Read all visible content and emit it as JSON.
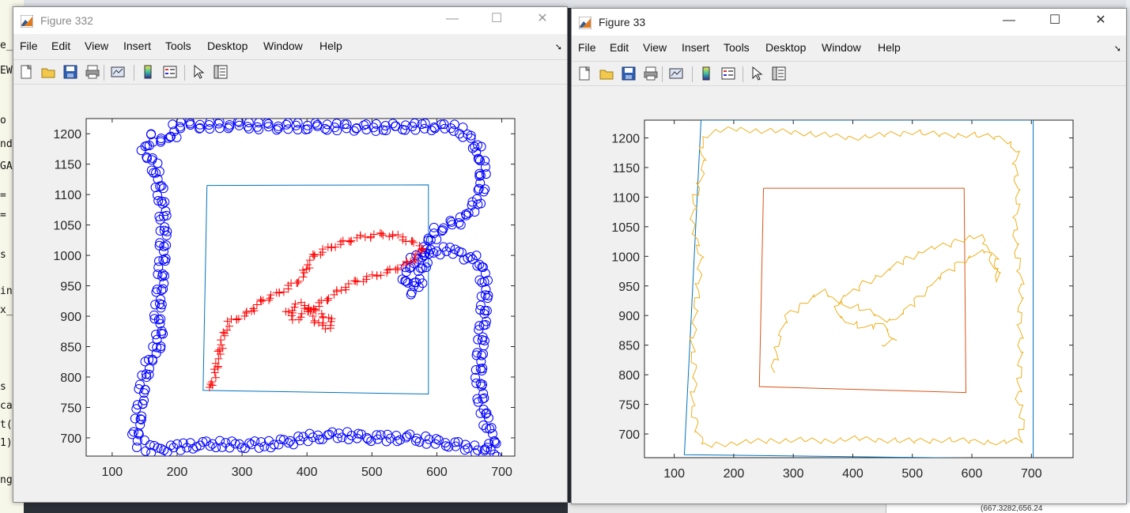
{
  "background": {
    "editor_lines": [
      {
        "text": "e_c",
        "top": 50
      },
      {
        "text": "EW",
        "top": 82
      },
      {
        "text": "o T",
        "top": 145
      },
      {
        "text": "nd",
        "top": 175
      },
      {
        "text": "GAT",
        "top": 203
      },
      {
        "text": "=",
        "top": 240
      },
      {
        "text": "=",
        "top": 265
      },
      {
        "text": "s",
        "top": 315
      },
      {
        "text": "in",
        "top": 361
      },
      {
        "text": "x_",
        "top": 385
      },
      {
        "text": "s",
        "top": 482
      },
      {
        "text": "ca",
        "top": 506
      },
      {
        "text": "t(",
        "top": 530
      },
      {
        "text": "1)",
        "top": 553
      },
      {
        "text": "ng",
        "top": 600
      }
    ],
    "status_text": "(667.3282,656.24"
  },
  "windows": [
    {
      "id": "fig332",
      "title": "Figure 332",
      "active": false,
      "menu": [
        "File",
        "Edit",
        "View",
        "Insert",
        "Tools",
        "Desktop",
        "Window",
        "Help"
      ]
    },
    {
      "id": "fig33",
      "title": "Figure 33",
      "active": true,
      "menu": [
        "File",
        "Edit",
        "View",
        "Insert",
        "Tools",
        "Desktop",
        "Window",
        "Help"
      ]
    }
  ],
  "toolbar_icons": [
    "new-figure-icon",
    "open-file-icon",
    "save-icon",
    "print-icon",
    "link-plot-icon",
    "insert-colorbar-icon",
    "insert-legend-icon",
    "edit-plot-icon",
    "property-inspector-icon"
  ],
  "controls": {
    "minimize": "—",
    "maximize": "☐",
    "close": "✕"
  },
  "chart_data": [
    {
      "type": "scatter",
      "figure": "Figure 332",
      "xlim": [
        60,
        720
      ],
      "ylim": [
        670,
        1225
      ],
      "xticks": [
        100,
        200,
        300,
        400,
        500,
        600,
        700
      ],
      "yticks": [
        700,
        750,
        800,
        850,
        900,
        950,
        1000,
        1050,
        1100,
        1150,
        1200
      ],
      "grid": false,
      "series": [
        {
          "kind": "circles",
          "color": "#0000ff",
          "path": [
            [
              150,
              690
            ],
            [
              160,
              680
            ],
            [
              200,
              685
            ],
            [
              250,
              690
            ],
            [
              300,
              688
            ],
            [
              350,
              690
            ],
            [
              400,
              700
            ],
            [
              450,
              705
            ],
            [
              500,
              700
            ],
            [
              560,
              700
            ],
            [
              620,
              690
            ],
            [
              670,
              680
            ],
            [
              690,
              675
            ],
            [
              685,
              700
            ],
            [
              670,
              750
            ],
            [
              665,
              800
            ],
            [
              668,
              850
            ],
            [
              672,
              900
            ],
            [
              675,
              950
            ],
            [
              665,
              990
            ],
            [
              620,
              1010
            ],
            [
              585,
              1005
            ],
            [
              560,
              990
            ],
            [
              550,
              960
            ],
            [
              565,
              940
            ],
            [
              578,
              975
            ],
            [
              585,
              1020
            ],
            [
              600,
              1040
            ],
            [
              640,
              1060
            ],
            [
              665,
              1090
            ],
            [
              670,
              1130
            ],
            [
              668,
              1160
            ],
            [
              655,
              1190
            ],
            [
              630,
              1210
            ],
            [
              580,
              1212
            ],
            [
              500,
              1210
            ],
            [
              420,
              1212
            ],
            [
              350,
              1212
            ],
            [
              290,
              1215
            ],
            [
              250,
              1213
            ],
            [
              200,
              1215
            ],
            [
              190,
              1190
            ],
            [
              160,
              1195
            ],
            [
              150,
              1170
            ],
            [
              165,
              1150
            ],
            [
              175,
              1100
            ],
            [
              180,
              1050
            ],
            [
              178,
              1000
            ],
            [
              175,
              950
            ],
            [
              170,
              900
            ],
            [
              175,
              860
            ],
            [
              160,
              830
            ],
            [
              150,
              800
            ],
            [
              145,
              760
            ],
            [
              140,
              720
            ],
            [
              135,
              690
            ]
          ]
        },
        {
          "kind": "plus",
          "color": "#ff0000",
          "path": [
            [
              250,
              780
            ],
            [
              260,
              810
            ],
            [
              265,
              840
            ],
            [
              272,
              870
            ],
            [
              280,
              890
            ],
            [
              310,
              905
            ],
            [
              330,
              925
            ],
            [
              360,
              940
            ],
            [
              390,
              960
            ],
            [
              410,
              1000
            ],
            [
              440,
              1015
            ],
            [
              480,
              1030
            ],
            [
              520,
              1035
            ],
            [
              545,
              1030
            ],
            [
              580,
              1012
            ],
            [
              560,
              990
            ],
            [
              530,
              975
            ],
            [
              500,
              965
            ],
            [
              470,
              955
            ],
            [
              440,
              935
            ],
            [
              420,
              920
            ],
            [
              400,
              905
            ],
            [
              380,
              895
            ],
            [
              370,
              910
            ],
            [
              390,
              920
            ],
            [
              420,
              905
            ],
            [
              440,
              890
            ],
            [
              430,
              880
            ],
            [
              410,
              895
            ],
            [
              400,
              915
            ]
          ]
        }
      ],
      "box": [
        [
          246,
          1115
        ],
        [
          240,
          778
        ],
        [
          587,
          772
        ],
        [
          587,
          1116
        ],
        [
          246,
          1115
        ]
      ]
    },
    {
      "type": "line",
      "figure": "Figure 33",
      "xlim": [
        50,
        770
      ],
      "ylim": [
        660,
        1230
      ],
      "xticks": [
        100,
        200,
        300,
        400,
        500,
        600,
        700
      ],
      "yticks": [
        700,
        750,
        800,
        850,
        900,
        950,
        1000,
        1050,
        1100,
        1150,
        1200
      ],
      "grid": false,
      "series": [
        {
          "kind": "line",
          "color": "#edb120",
          "path": [
            [
              150,
              680
            ],
            [
              200,
              685
            ],
            [
              250,
              688
            ],
            [
              300,
              690
            ],
            [
              350,
              688
            ],
            [
              400,
              692
            ],
            [
              450,
              690
            ],
            [
              500,
              688
            ],
            [
              550,
              690
            ],
            [
              600,
              688
            ],
            [
              650,
              685
            ],
            [
              680,
              690
            ],
            [
              685,
              720
            ],
            [
              678,
              760
            ],
            [
              680,
              800
            ],
            [
              682,
              850
            ],
            [
              680,
              900
            ],
            [
              684,
              950
            ],
            [
              676,
              1000
            ],
            [
              672,
              1050
            ],
            [
              678,
              1100
            ],
            [
              672,
              1150
            ],
            [
              676,
              1180
            ],
            [
              650,
              1200
            ],
            [
              600,
              1205
            ],
            [
              550,
              1205
            ],
            [
              500,
              1210
            ],
            [
              450,
              1205
            ],
            [
              400,
              1200
            ],
            [
              350,
              1205
            ],
            [
              300,
              1210
            ],
            [
              250,
              1212
            ],
            [
              200,
              1215
            ],
            [
              165,
              1210
            ],
            [
              145,
              1195
            ],
            [
              150,
              1150
            ],
            [
              135,
              1100
            ],
            [
              130,
              1050
            ],
            [
              145,
              1000
            ],
            [
              140,
              950
            ],
            [
              135,
              900
            ],
            [
              130,
              850
            ],
            [
              135,
              800
            ],
            [
              130,
              750
            ],
            [
              140,
              700
            ],
            [
              150,
              680
            ]
          ]
        },
        {
          "kind": "line",
          "color": "#edb120",
          "path": [
            [
              265,
              800
            ],
            [
              275,
              860
            ],
            [
              290,
              900
            ],
            [
              330,
              930
            ],
            [
              350,
              940
            ],
            [
              380,
              920
            ],
            [
              420,
              910
            ],
            [
              460,
              890
            ],
            [
              480,
              900
            ],
            [
              500,
              920
            ],
            [
              540,
              960
            ],
            [
              580,
              990
            ],
            [
              620,
              1010
            ],
            [
              640,
              1000
            ],
            [
              645,
              960
            ],
            [
              620,
              1030
            ],
            [
              600,
              1035
            ],
            [
              560,
              1020
            ],
            [
              520,
              1010
            ],
            [
              480,
              990
            ],
            [
              450,
              970
            ],
            [
              420,
              955
            ],
            [
              400,
              940
            ],
            [
              380,
              930
            ],
            [
              370,
              905
            ],
            [
              390,
              890
            ],
            [
              420,
              880
            ],
            [
              450,
              885
            ],
            [
              470,
              860
            ],
            [
              445,
              845
            ]
          ]
        }
      ],
      "boxes": [
        {
          "color": "#0072bd",
          "path": [
            [
              145,
              1230
            ],
            [
              117,
              665
            ],
            [
              703,
              658
            ],
            [
              703,
              1230
            ],
            [
              145,
              1230
            ]
          ]
        },
        {
          "color": "#d95319",
          "path": [
            [
              250,
              1115
            ],
            [
              243,
              780
            ],
            [
              590,
              770
            ],
            [
              587,
              1115
            ],
            [
              250,
              1115
            ]
          ]
        }
      ]
    }
  ]
}
